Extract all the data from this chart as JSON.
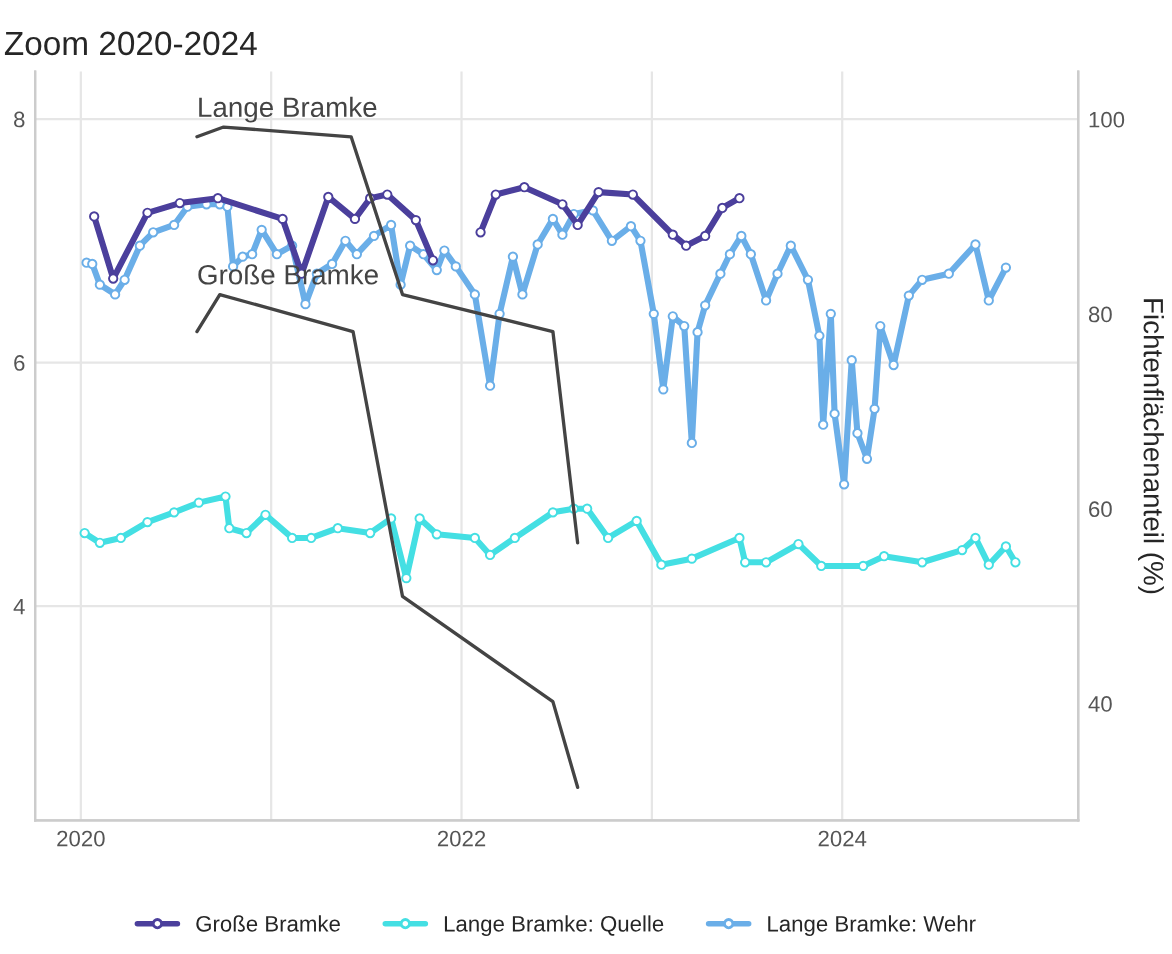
{
  "chart_data": {
    "type": "line",
    "title": "Zoom 2020-2024",
    "y2label": "Fichtenflächenanteil (%)",
    "xlim": [
      2019.76,
      2025.24
    ],
    "xticks": [
      2020,
      {
        "value": 2021,
        "label": null
      },
      2022,
      {
        "value": 2023,
        "label": null
      },
      2024
    ],
    "ylim": [
      2.24,
      8.39
    ],
    "yticks": [
      {
        "value": 4,
        "label": "4"
      },
      {
        "value": 6,
        "label": "6"
      },
      {
        "value": 8,
        "label": "8"
      }
    ],
    "y2lim": [
      28,
      104.9
    ],
    "y2ticks": [
      40,
      60,
      80,
      100
    ],
    "grid": true,
    "legend": "bottom",
    "series": [
      {
        "name": "Große Bramke",
        "color": "#4b3f9c",
        "marker": "circle",
        "x": [
          2020.07,
          2020.17,
          2020.35,
          2020.52,
          2020.72,
          2021.06,
          2021.16,
          2021.3,
          2021.44,
          2021.52,
          2021.61,
          2021.76,
          2021.85,
          2021.98,
          2022.1,
          2022.18,
          2022.33,
          2022.53,
          2022.61,
          2022.72,
          2022.9,
          2023.11,
          2023.18,
          2023.28,
          2023.37,
          2023.46
        ],
        "values": [
          7.2,
          6.69,
          7.23,
          7.31,
          7.35,
          7.18,
          6.73,
          7.36,
          7.18,
          7.35,
          7.38,
          7.17,
          6.84,
          null,
          7.07,
          7.38,
          7.44,
          7.3,
          7.13,
          7.4,
          7.38,
          7.05,
          6.96,
          7.04,
          7.27,
          7.35
        ]
      },
      {
        "name": "Lange Bramke: Quelle",
        "color": "#44dfe3",
        "marker": "circle",
        "x": [
          2020.02,
          2020.1,
          2020.21,
          2020.35,
          2020.49,
          2020.62,
          2020.76,
          2020.78,
          2020.87,
          2020.97,
          2021.11,
          2021.21,
          2021.35,
          2021.52,
          2021.63,
          2021.71,
          2021.78,
          2021.87,
          2022.07,
          2022.15,
          2022.28,
          2022.48,
          2022.59,
          2022.66,
          2022.77,
          2022.92,
          2023.05,
          2023.21,
          2023.46,
          2023.49,
          2023.6,
          2023.77,
          2023.89,
          2024.11,
          2024.22,
          2024.42,
          2024.63,
          2024.7,
          2024.77,
          2024.86,
          2024.91
        ],
        "values": [
          4.6,
          4.52,
          4.56,
          4.69,
          4.77,
          4.85,
          4.9,
          4.64,
          4.6,
          4.75,
          4.56,
          4.56,
          4.64,
          4.6,
          4.72,
          4.23,
          4.72,
          4.59,
          4.56,
          4.42,
          4.56,
          4.77,
          4.8,
          4.8,
          4.56,
          4.7,
          4.34,
          4.39,
          4.56,
          4.36,
          4.36,
          4.51,
          4.33,
          4.33,
          4.41,
          4.36,
          4.46,
          4.56,
          4.34,
          4.49,
          4.36
        ]
      },
      {
        "name": "Lange Bramke: Wehr",
        "color": "#6aaee8",
        "marker": "circle",
        "x": [
          2020.03,
          2020.06,
          2020.1,
          2020.18,
          2020.23,
          2020.31,
          2020.38,
          2020.49,
          2020.56,
          2020.66,
          2020.73,
          2020.77,
          2020.8,
          2020.85,
          2020.9,
          2020.95,
          2021.03,
          2021.11,
          2021.18,
          2021.24,
          2021.32,
          2021.39,
          2021.45,
          2021.54,
          2021.63,
          2021.68,
          2021.73,
          2021.8,
          2021.87,
          2021.91,
          2021.97,
          2022.07,
          2022.15,
          2022.2,
          2022.27,
          2022.32,
          2022.4,
          2022.48,
          2022.53,
          2022.59,
          2022.69,
          2022.79,
          2022.89,
          2022.94,
          2023.01,
          2023.06,
          2023.11,
          2023.17,
          2023.21,
          2023.24,
          2023.28,
          2023.36,
          2023.41,
          2023.47,
          2023.52,
          2023.6,
          2023.66,
          2023.73,
          2023.82,
          2023.88,
          2023.9,
          2023.94,
          2023.96,
          2024.01,
          2024.05,
          2024.08,
          2024.13,
          2024.17,
          2024.2,
          2024.27,
          2024.35,
          2024.42,
          2024.56,
          2024.7,
          2024.77,
          2024.86
        ],
        "values": [
          6.82,
          6.81,
          6.64,
          6.56,
          6.68,
          6.96,
          7.07,
          7.13,
          7.28,
          7.3,
          7.3,
          7.28,
          6.79,
          6.87,
          6.89,
          7.09,
          6.89,
          6.96,
          6.48,
          6.73,
          6.81,
          7.0,
          6.89,
          7.04,
          7.13,
          6.64,
          6.96,
          6.89,
          6.76,
          6.92,
          6.79,
          6.56,
          5.81,
          6.4,
          6.87,
          6.56,
          6.97,
          7.18,
          7.05,
          7.22,
          7.25,
          7.0,
          7.12,
          7.0,
          6.4,
          5.78,
          6.38,
          6.3,
          5.34,
          6.25,
          6.47,
          6.73,
          6.89,
          7.04,
          6.89,
          6.51,
          6.73,
          6.96,
          6.68,
          6.22,
          5.49,
          6.4,
          5.58,
          5.0,
          6.02,
          5.42,
          5.21,
          5.62,
          6.3,
          5.98,
          6.55,
          6.68,
          6.73,
          6.97,
          6.51,
          6.78
        ]
      },
      {
        "name": "Lange Bramke",
        "color": "#444444",
        "marker": "none",
        "axis": "y2",
        "x": [
          2020.61,
          2020.75,
          2021.42,
          2021.69,
          2022.48,
          2022.61
        ],
        "values": [
          98.2,
          99.2,
          98.2,
          82.0,
          78.2,
          56.5
        ]
      },
      {
        "name": "Große Bramke",
        "color": "#444444",
        "marker": "none",
        "axis": "y2",
        "x": [
          2020.61,
          2020.73,
          2021.43,
          2021.69,
          2022.48,
          2022.61
        ],
        "values": [
          78.2,
          82.0,
          78.2,
          51.0,
          40.2,
          31.4
        ]
      }
    ]
  }
}
